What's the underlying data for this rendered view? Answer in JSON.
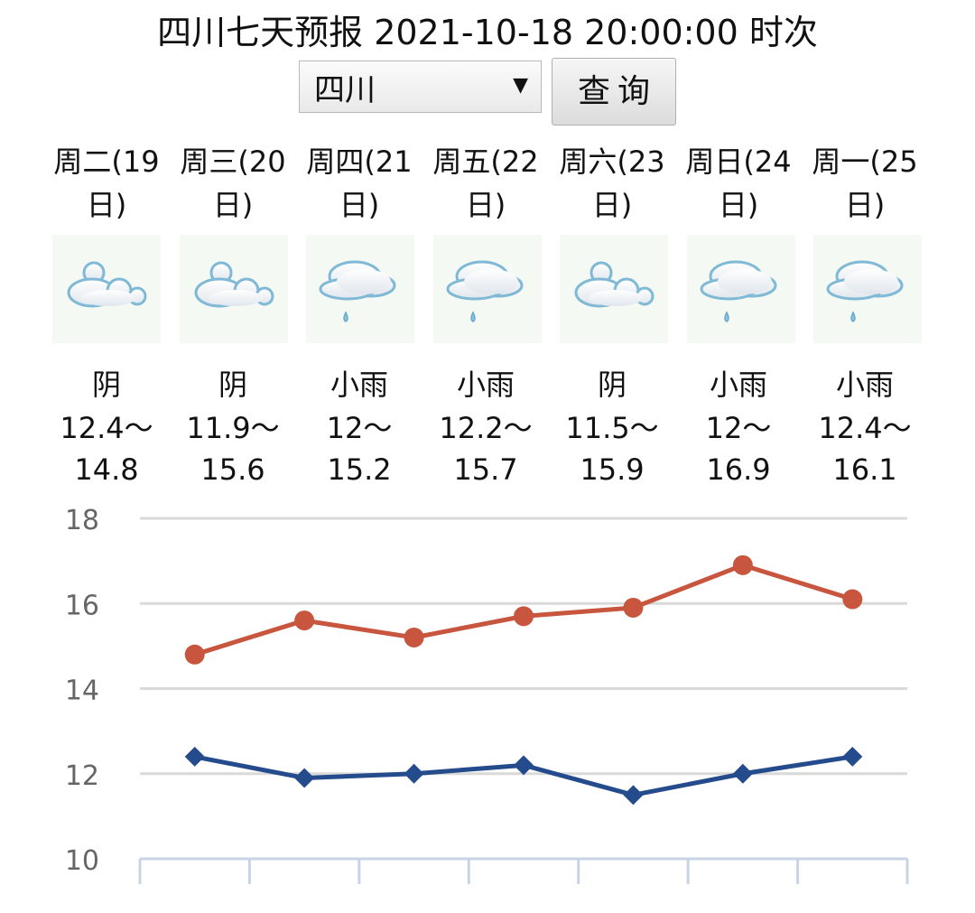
{
  "header": {
    "title": "四川七天预报 2021-10-18 20:00:00 时次"
  },
  "controls": {
    "region_value": "四川",
    "dropdown_arrow": "▼",
    "query_label": "查询"
  },
  "days": [
    {
      "label_1": "周二(19",
      "label_2": "日)",
      "icon": "overcast-cloud-icon",
      "weather": "阴",
      "range_1": "12.4～",
      "range_2": "14.8"
    },
    {
      "label_1": "周三(20",
      "label_2": "日)",
      "icon": "overcast-cloud-icon",
      "weather": "阴",
      "range_1": "11.9～",
      "range_2": "15.6"
    },
    {
      "label_1": "周四(21",
      "label_2": "日)",
      "icon": "light-rain-icon",
      "weather": "小雨",
      "range_1": "12～",
      "range_2": "15.2"
    },
    {
      "label_1": "周五(22",
      "label_2": "日)",
      "icon": "light-rain-icon",
      "weather": "小雨",
      "range_1": "12.2～",
      "range_2": "15.7"
    },
    {
      "label_1": "周六(23",
      "label_2": "日)",
      "icon": "overcast-cloud-icon",
      "weather": "阴",
      "range_1": "11.5～",
      "range_2": "15.9"
    },
    {
      "label_1": "周日(24",
      "label_2": "日)",
      "icon": "light-rain-icon",
      "weather": "小雨",
      "range_1": "12～",
      "range_2": "16.9"
    },
    {
      "label_1": "周一(25",
      "label_2": "日)",
      "icon": "light-rain-icon",
      "weather": "小雨",
      "range_1": "12.4～",
      "range_2": "16.1"
    }
  ],
  "chart_data": {
    "type": "line",
    "title": "",
    "xlabel": "",
    "ylabel": "",
    "ylim": [
      10,
      18
    ],
    "yticks": [
      10,
      12,
      14,
      16,
      18
    ],
    "grid": true,
    "categories": [
      "19",
      "20",
      "21",
      "22",
      "23",
      "24",
      "25"
    ],
    "show_x_tick_labels": false,
    "series": [
      {
        "values": [
          14.8,
          15.6,
          15.2,
          15.7,
          15.9,
          16.9,
          16.1
        ],
        "color": "#c8553d",
        "marker": "circle"
      },
      {
        "values": [
          12.4,
          11.9,
          12,
          12.2,
          11.5,
          12,
          12.4
        ],
        "color": "#244b8c",
        "marker": "diamond"
      }
    ]
  }
}
